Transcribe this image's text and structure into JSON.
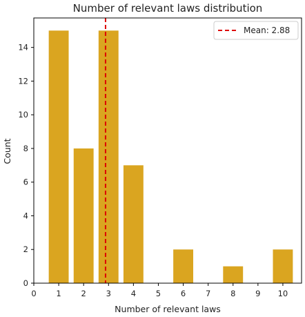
{
  "chart_data": {
    "type": "bar",
    "title": "Number of relevant laws distribution",
    "xlabel": "Number of relevant laws",
    "ylabel": "Count",
    "x": [
      1,
      2,
      3,
      4,
      6,
      8,
      10
    ],
    "values": [
      15,
      8,
      15,
      7,
      2,
      1,
      2
    ],
    "xlim": [
      0,
      10.75
    ],
    "ylim": [
      0,
      15.75
    ],
    "xticks": [
      0,
      1,
      2,
      3,
      4,
      5,
      6,
      7,
      8,
      9,
      10
    ],
    "yticks": [
      0,
      2,
      4,
      6,
      8,
      10,
      12,
      14
    ],
    "bar_width": 0.8,
    "bar_color": "#DAA520",
    "mean": {
      "value": 2.88,
      "label": "Mean: 2.88",
      "color": "#DD0000",
      "style": "dashed"
    },
    "legend_position": "top-right",
    "grid": false
  }
}
